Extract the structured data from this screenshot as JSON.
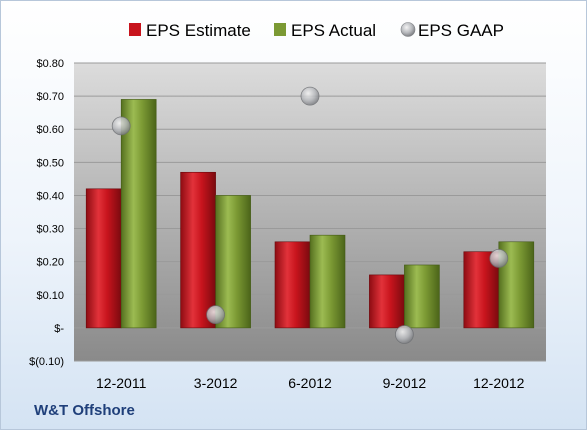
{
  "company": "W&T Offshore",
  "colors": {
    "estimate": "#c8141d",
    "actual": "#7c9a34",
    "gaap": "#b7b9bd"
  },
  "chart_data": {
    "type": "bar",
    "categories": [
      "12-2011",
      "3-2012",
      "6-2012",
      "9-2012",
      "12-2012"
    ],
    "series": [
      {
        "name": "EPS Estimate",
        "type": "bar",
        "values": [
          0.42,
          0.47,
          0.26,
          0.16,
          0.23
        ]
      },
      {
        "name": "EPS Actual",
        "type": "bar",
        "values": [
          0.69,
          0.4,
          0.28,
          0.19,
          0.26
        ]
      },
      {
        "name": "EPS GAAP",
        "type": "scatter",
        "values": [
          0.61,
          0.04,
          0.7,
          -0.02,
          0.21
        ]
      }
    ],
    "ylim": [
      -0.1,
      0.8
    ],
    "yticks": [
      -0.1,
      0.0,
      0.1,
      0.2,
      0.3,
      0.4,
      0.5,
      0.6,
      0.7,
      0.8
    ],
    "ytick_labels": [
      "$(0.10)",
      "$-",
      "$0.10",
      "$0.20",
      "$0.30",
      "$0.40",
      "$0.50",
      "$0.60",
      "$0.70",
      "$0.80"
    ],
    "grid": true,
    "legend": "top"
  }
}
